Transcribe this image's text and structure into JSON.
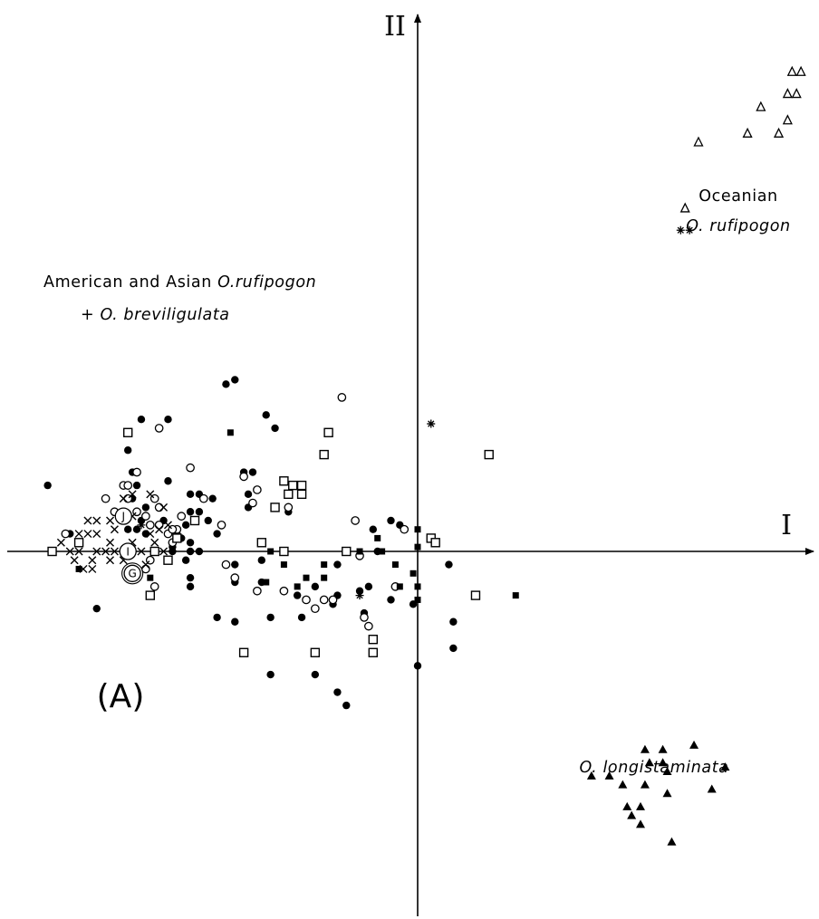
{
  "chart_data": {
    "type": "scatter",
    "panel_label": "(A)",
    "x_axis_label": "I",
    "y_axis_label": "II",
    "xlim": [
      -9.2,
      8.8
    ],
    "ylim": [
      -7.9,
      12.3
    ],
    "grid": false,
    "legend": "none",
    "group_labels": [
      {
        "id": "american",
        "lines": [
          {
            "parts": [
              {
                "text": "American and Asian ",
                "italic": false
              },
              {
                "text": "O.rufipogon",
                "italic": true
              }
            ]
          },
          {
            "parts": [
              {
                "text": "+ ",
                "italic": false
              },
              {
                "text": "O. breviligulata",
                "italic": true
              }
            ]
          }
        ]
      },
      {
        "id": "oceanian",
        "lines": [
          {
            "parts": [
              {
                "text": "Oceanian",
                "italic": false
              }
            ]
          },
          {
            "parts": [
              {
                "text": "O. rufipogon",
                "italic": true
              }
            ]
          }
        ]
      },
      {
        "id": "longistaminata",
        "lines": [
          {
            "parts": [
              {
                "text": "O. longistaminata",
                "italic": true
              }
            ]
          }
        ]
      }
    ],
    "circled_labels": [
      {
        "text": "J",
        "x": -6.6,
        "y": 0.8
      },
      {
        "text": "I",
        "x": -6.5,
        "y": 0.0
      },
      {
        "text": "G",
        "x": -6.4,
        "y": -0.5
      }
    ],
    "series": [
      {
        "marker": "filled-circle",
        "points": [
          [
            -8.3,
            1.5
          ],
          [
            -7.8,
            0.4
          ],
          [
            -6.5,
            2.3
          ],
          [
            -6.4,
            1.8
          ],
          [
            -6.3,
            1.5
          ],
          [
            -6.4,
            1.2
          ],
          [
            -6.1,
            1.0
          ],
          [
            -6.2,
            0.7
          ],
          [
            -6.5,
            0.5
          ],
          [
            -6.3,
            0.5
          ],
          [
            -6.1,
            0.4
          ],
          [
            -5.7,
            0.7
          ],
          [
            -5.6,
            1.6
          ],
          [
            -5.4,
            0.4
          ],
          [
            -5.5,
            0.1
          ],
          [
            -5.3,
            0.3
          ],
          [
            -5.1,
            0.2
          ],
          [
            -5.5,
            0.0
          ],
          [
            -6.2,
            3.0
          ],
          [
            -5.6,
            3.0
          ],
          [
            -5.1,
            1.3
          ],
          [
            -5.1,
            0.9
          ],
          [
            -5.2,
            0.6
          ],
          [
            -5.1,
            0.0
          ],
          [
            -4.9,
            0.0
          ],
          [
            -4.9,
            1.3
          ],
          [
            -4.9,
            0.9
          ],
          [
            -4.7,
            0.7
          ],
          [
            -4.5,
            0.4
          ],
          [
            -4.6,
            1.2
          ],
          [
            -4.3,
            3.8
          ],
          [
            -4.1,
            3.9
          ],
          [
            -5.2,
            -0.2
          ],
          [
            -5.1,
            -0.6
          ],
          [
            -5.1,
            -0.8
          ],
          [
            -7.2,
            -1.3
          ],
          [
            -4.5,
            -1.5
          ],
          [
            -4.1,
            -1.6
          ],
          [
            -4.1,
            -0.7
          ],
          [
            -4.1,
            -0.3
          ],
          [
            -3.9,
            1.8
          ],
          [
            -3.8,
            1.3
          ],
          [
            -3.7,
            1.8
          ],
          [
            -3.8,
            1.0
          ],
          [
            -3.4,
            3.1
          ],
          [
            -3.2,
            2.8
          ],
          [
            -3.5,
            -0.2
          ],
          [
            -3.5,
            -0.7
          ],
          [
            -3.3,
            -1.5
          ],
          [
            -3.3,
            -2.8
          ],
          [
            -2.9,
            0.9
          ],
          [
            -2.7,
            -1.0
          ],
          [
            -2.6,
            -1.5
          ],
          [
            -2.3,
            -0.8
          ],
          [
            -2.3,
            -1.3
          ],
          [
            -2.3,
            -2.8
          ],
          [
            -1.9,
            -1.2
          ],
          [
            -1.8,
            -0.3
          ],
          [
            -1.8,
            -1.0
          ],
          [
            -1.8,
            -3.2
          ],
          [
            -1.6,
            -3.5
          ],
          [
            -1.3,
            -0.9
          ],
          [
            -1.1,
            -0.8
          ],
          [
            -1.2,
            -1.4
          ],
          [
            -1.0,
            0.5
          ],
          [
            -0.9,
            0.0
          ],
          [
            -0.6,
            0.7
          ],
          [
            -0.6,
            -1.1
          ],
          [
            -0.4,
            0.6
          ],
          [
            -0.1,
            -1.2
          ],
          [
            0.0,
            -2.6
          ],
          [
            0.7,
            -0.3
          ],
          [
            0.8,
            -1.6
          ],
          [
            0.8,
            -2.2
          ]
        ]
      },
      {
        "marker": "open-circle",
        "points": [
          [
            -7.9,
            0.4
          ],
          [
            -7.0,
            1.2
          ],
          [
            -6.8,
            0.9
          ],
          [
            -6.6,
            1.5
          ],
          [
            -6.5,
            1.5
          ],
          [
            -6.5,
            1.2
          ],
          [
            -6.3,
            1.8
          ],
          [
            -6.3,
            0.9
          ],
          [
            -6.1,
            0.8
          ],
          [
            -6.0,
            0.6
          ],
          [
            -5.9,
            1.2
          ],
          [
            -5.8,
            1.0
          ],
          [
            -5.8,
            0.6
          ],
          [
            -5.5,
            0.2
          ],
          [
            -5.4,
            0.5
          ],
          [
            -5.6,
            0.4
          ],
          [
            -5.3,
            0.8
          ],
          [
            -5.5,
            0.5
          ],
          [
            -6.0,
            -0.2
          ],
          [
            -6.1,
            -0.4
          ],
          [
            -5.9,
            -0.8
          ],
          [
            -5.8,
            2.8
          ],
          [
            -5.1,
            1.9
          ],
          [
            -4.8,
            1.2
          ],
          [
            -4.4,
            0.6
          ],
          [
            -4.3,
            -0.3
          ],
          [
            -4.1,
            -0.6
          ],
          [
            -3.9,
            1.7
          ],
          [
            -3.7,
            1.1
          ],
          [
            -3.6,
            1.4
          ],
          [
            -3.6,
            -0.9
          ],
          [
            -3.0,
            -0.9
          ],
          [
            -2.9,
            1.0
          ],
          [
            -2.5,
            -1.1
          ],
          [
            -2.3,
            -1.3
          ],
          [
            -2.1,
            -1.1
          ],
          [
            -1.9,
            -1.1
          ],
          [
            -1.7,
            3.5
          ],
          [
            -1.4,
            0.7
          ],
          [
            -1.3,
            -0.1
          ],
          [
            -1.2,
            -1.5
          ],
          [
            -1.1,
            -1.7
          ],
          [
            -0.5,
            -0.8
          ],
          [
            -0.3,
            0.5
          ]
        ]
      },
      {
        "marker": "open-square",
        "points": [
          [
            -8.2,
            0.0
          ],
          [
            -7.6,
            0.2
          ],
          [
            -6.5,
            2.7
          ],
          [
            -6.0,
            -1.0
          ],
          [
            -5.9,
            0.0
          ],
          [
            -5.6,
            -0.2
          ],
          [
            -5.4,
            0.3
          ],
          [
            -5.0,
            0.7
          ],
          [
            -3.9,
            -2.3
          ],
          [
            -3.5,
            0.2
          ],
          [
            -3.2,
            1.0
          ],
          [
            -3.0,
            0.0
          ],
          [
            -3.0,
            1.6
          ],
          [
            -2.9,
            1.3
          ],
          [
            -2.8,
            1.5
          ],
          [
            -2.6,
            1.3
          ],
          [
            -2.6,
            1.5
          ],
          [
            -2.3,
            -2.3
          ],
          [
            -2.1,
            2.2
          ],
          [
            -2.0,
            2.7
          ],
          [
            -1.0,
            -2.0
          ],
          [
            -1.0,
            -2.3
          ],
          [
            -1.6,
            0.0
          ],
          [
            0.3,
            0.3
          ],
          [
            0.4,
            0.2
          ],
          [
            1.3,
            -1.0
          ],
          [
            1.6,
            2.2
          ]
        ]
      },
      {
        "marker": "filled-square",
        "points": [
          [
            -7.6,
            -0.4
          ],
          [
            -6.0,
            -0.6
          ],
          [
            -4.2,
            2.7
          ],
          [
            -3.4,
            -0.7
          ],
          [
            -3.3,
            0.0
          ],
          [
            -3.0,
            -0.3
          ],
          [
            -2.7,
            -0.8
          ],
          [
            -2.5,
            -0.6
          ],
          [
            -2.1,
            -0.3
          ],
          [
            -2.1,
            -0.6
          ],
          [
            -1.3,
            0.0
          ],
          [
            -0.9,
            0.3
          ],
          [
            -0.8,
            0.0
          ],
          [
            -0.5,
            -0.3
          ],
          [
            -0.4,
            -0.8
          ],
          [
            -0.1,
            -0.5
          ],
          [
            0.0,
            0.5
          ],
          [
            0.0,
            0.1
          ],
          [
            0.0,
            -0.8
          ],
          [
            0.0,
            -1.1
          ],
          [
            2.2,
            -1.0
          ]
        ]
      },
      {
        "marker": "x",
        "points": [
          [
            -8.0,
            0.2
          ],
          [
            -7.8,
            0.0
          ],
          [
            -7.7,
            -0.2
          ],
          [
            -7.6,
            0.0
          ],
          [
            -7.6,
            0.4
          ],
          [
            -7.5,
            -0.4
          ],
          [
            -7.4,
            0.7
          ],
          [
            -7.4,
            0.4
          ],
          [
            -7.3,
            -0.2
          ],
          [
            -7.3,
            -0.4
          ],
          [
            -7.2,
            0.7
          ],
          [
            -7.2,
            0.4
          ],
          [
            -7.2,
            0.0
          ],
          [
            -7.0,
            0.0
          ],
          [
            -6.9,
            0.7
          ],
          [
            -6.9,
            0.2
          ],
          [
            -6.9,
            -0.2
          ],
          [
            -6.8,
            0.5
          ],
          [
            -6.8,
            0.0
          ],
          [
            -6.6,
            -0.2
          ],
          [
            -6.6,
            1.2
          ],
          [
            -6.4,
            1.3
          ],
          [
            -6.4,
            0.8
          ],
          [
            -6.4,
            0.2
          ],
          [
            -6.2,
            0.0
          ],
          [
            -6.1,
            -0.3
          ],
          [
            -6.0,
            1.3
          ],
          [
            -6.0,
            0.4
          ],
          [
            -5.9,
            0.2
          ],
          [
            -5.8,
            0.5
          ],
          [
            -5.7,
            0.0
          ],
          [
            -5.7,
            1.0
          ],
          [
            -5.6,
            0.6
          ]
        ]
      },
      {
        "marker": "asterisk",
        "points": [
          [
            -6.2,
            0.6
          ],
          [
            -1.3,
            -1.0
          ],
          [
            0.3,
            2.9
          ],
          [
            5.9,
            7.3
          ],
          [
            6.1,
            7.3
          ]
        ]
      },
      {
        "marker": "open-triangle",
        "points": [
          [
            6.0,
            7.8
          ],
          [
            6.3,
            9.3
          ],
          [
            7.4,
            9.5
          ],
          [
            7.7,
            10.1
          ],
          [
            8.1,
            9.5
          ],
          [
            8.3,
            9.8
          ],
          [
            8.3,
            10.4
          ],
          [
            8.4,
            10.9
          ],
          [
            8.5,
            10.4
          ],
          [
            8.6,
            10.9
          ]
        ]
      },
      {
        "marker": "filled-triangle",
        "points": [
          [
            3.9,
            -5.1
          ],
          [
            4.3,
            -5.1
          ],
          [
            4.6,
            -5.3
          ],
          [
            4.7,
            -5.8
          ],
          [
            4.8,
            -6.0
          ],
          [
            5.0,
            -6.2
          ],
          [
            5.0,
            -5.8
          ],
          [
            5.1,
            -5.3
          ],
          [
            5.1,
            -4.5
          ],
          [
            5.2,
            -4.8
          ],
          [
            5.5,
            -4.8
          ],
          [
            5.5,
            -4.5
          ],
          [
            5.6,
            -5.5
          ],
          [
            5.6,
            -5.0
          ],
          [
            5.7,
            -6.6
          ],
          [
            6.2,
            -4.4
          ],
          [
            6.6,
            -5.4
          ],
          [
            6.9,
            -4.9
          ]
        ]
      }
    ]
  }
}
